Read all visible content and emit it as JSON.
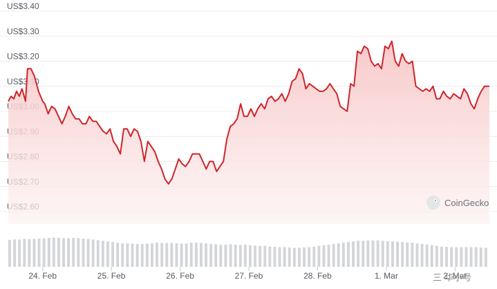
{
  "brand": {
    "name": "CoinGecko",
    "icon": "gecko-logo-icon"
  },
  "watermark": "三 华小号",
  "colors": {
    "line": "#d0232a",
    "area_top": "#f7c6c6",
    "area_bottom": "#fdf1f1",
    "volume": "#d3d5d9",
    "grid": "#ececec"
  },
  "chart_data": {
    "type": "area",
    "title": "",
    "xlabel": "",
    "ylabel": "",
    "ylim": [
      2.6,
      3.4
    ],
    "y_ticks": [
      {
        "value": 3.4,
        "label": "US$3.40"
      },
      {
        "value": 3.3,
        "label": "US$3.30"
      },
      {
        "value": 3.2,
        "label": "US$3.20"
      },
      {
        "value": 3.1,
        "label": "US$3.10"
      },
      {
        "value": 3.0,
        "label": "US$3.00"
      },
      {
        "value": 2.9,
        "label": "US$2.90"
      },
      {
        "value": 2.8,
        "label": "US$2.80"
      },
      {
        "value": 2.7,
        "label": "US$2.70"
      },
      {
        "value": 2.6,
        "label": "US$2.60"
      }
    ],
    "x_ticks": [
      {
        "day": 0.5,
        "label": "24. Feb"
      },
      {
        "day": 1.5,
        "label": "25. Feb"
      },
      {
        "day": 2.5,
        "label": "26. Feb"
      },
      {
        "day": 3.5,
        "label": "27. Feb"
      },
      {
        "day": 4.5,
        "label": "28. Feb"
      },
      {
        "day": 5.5,
        "label": "1. Mar"
      },
      {
        "day": 6.5,
        "label": "2. Mar"
      }
    ],
    "x_range": [
      0.0,
      7.0
    ],
    "grid": true,
    "series": [
      {
        "values": [
          [
            0.0,
            3.04
          ],
          [
            0.04,
            3.06
          ],
          [
            0.08,
            3.05
          ],
          [
            0.12,
            3.08
          ],
          [
            0.16,
            3.06
          ],
          [
            0.2,
            3.09
          ],
          [
            0.25,
            3.04
          ],
          [
            0.28,
            3.17
          ],
          [
            0.33,
            3.17
          ],
          [
            0.38,
            3.14
          ],
          [
            0.44,
            3.08
          ],
          [
            0.5,
            3.04
          ],
          [
            0.53,
            3.03
          ],
          [
            0.58,
            2.99
          ],
          [
            0.63,
            3.02
          ],
          [
            0.68,
            3.01
          ],
          [
            0.73,
            2.98
          ],
          [
            0.78,
            2.95
          ],
          [
            0.83,
            2.98
          ],
          [
            0.88,
            3.02
          ],
          [
            0.93,
            2.99
          ],
          [
            0.98,
            2.97
          ],
          [
            1.03,
            2.97
          ],
          [
            1.08,
            2.95
          ],
          [
            1.13,
            2.95
          ],
          [
            1.18,
            2.98
          ],
          [
            1.23,
            2.96
          ],
          [
            1.28,
            2.96
          ],
          [
            1.33,
            2.94
          ],
          [
            1.38,
            2.92
          ],
          [
            1.43,
            2.91
          ],
          [
            1.48,
            2.93
          ],
          [
            1.53,
            2.88
          ],
          [
            1.58,
            2.86
          ],
          [
            1.63,
            2.83
          ],
          [
            1.68,
            2.93
          ],
          [
            1.73,
            2.93
          ],
          [
            1.78,
            2.9
          ],
          [
            1.83,
            2.93
          ],
          [
            1.88,
            2.92
          ],
          [
            1.93,
            2.88
          ],
          [
            1.98,
            2.8
          ],
          [
            2.03,
            2.88
          ],
          [
            2.08,
            2.86
          ],
          [
            2.13,
            2.84
          ],
          [
            2.18,
            2.8
          ],
          [
            2.23,
            2.77
          ],
          [
            2.28,
            2.73
          ],
          [
            2.33,
            2.71
          ],
          [
            2.38,
            2.73
          ],
          [
            2.43,
            2.77
          ],
          [
            2.48,
            2.81
          ],
          [
            2.53,
            2.79
          ],
          [
            2.58,
            2.78
          ],
          [
            2.63,
            2.8
          ],
          [
            2.68,
            2.83
          ],
          [
            2.73,
            2.83
          ],
          [
            2.78,
            2.83
          ],
          [
            2.83,
            2.8
          ],
          [
            2.88,
            2.77
          ],
          [
            2.93,
            2.8
          ],
          [
            2.98,
            2.8
          ],
          [
            3.03,
            2.76
          ],
          [
            3.08,
            2.78
          ],
          [
            3.13,
            2.8
          ],
          [
            3.18,
            2.89
          ],
          [
            3.23,
            2.94
          ],
          [
            3.28,
            2.95
          ],
          [
            3.33,
            2.97
          ],
          [
            3.38,
            3.03
          ],
          [
            3.43,
            2.98
          ],
          [
            3.48,
            2.98
          ],
          [
            3.53,
            3.01
          ],
          [
            3.58,
            2.98
          ],
          [
            3.63,
            3.01
          ],
          [
            3.68,
            3.03
          ],
          [
            3.73,
            3.01
          ],
          [
            3.78,
            3.05
          ],
          [
            3.83,
            3.06
          ],
          [
            3.88,
            3.04
          ],
          [
            3.93,
            3.05
          ],
          [
            3.98,
            3.07
          ],
          [
            4.03,
            3.04
          ],
          [
            4.08,
            3.07
          ],
          [
            4.13,
            3.12
          ],
          [
            4.18,
            3.13
          ],
          [
            4.23,
            3.17
          ],
          [
            4.28,
            3.15
          ],
          [
            4.33,
            3.09
          ],
          [
            4.38,
            3.11
          ],
          [
            4.43,
            3.1
          ],
          [
            4.48,
            3.09
          ],
          [
            4.53,
            3.08
          ],
          [
            4.58,
            3.08
          ],
          [
            4.63,
            3.09
          ],
          [
            4.68,
            3.11
          ],
          [
            4.73,
            3.09
          ],
          [
            4.78,
            3.07
          ],
          [
            4.83,
            3.02
          ],
          [
            4.88,
            3.01
          ],
          [
            4.93,
            3.0
          ],
          [
            4.98,
            3.11
          ],
          [
            5.03,
            3.1
          ],
          [
            5.08,
            3.24
          ],
          [
            5.13,
            3.23
          ],
          [
            5.18,
            3.26
          ],
          [
            5.23,
            3.25
          ],
          [
            5.28,
            3.2
          ],
          [
            5.33,
            3.18
          ],
          [
            5.38,
            3.19
          ],
          [
            5.43,
            3.17
          ],
          [
            5.48,
            3.26
          ],
          [
            5.53,
            3.25
          ],
          [
            5.58,
            3.28
          ],
          [
            5.63,
            3.2
          ],
          [
            5.68,
            3.18
          ],
          [
            5.73,
            3.23
          ],
          [
            5.78,
            3.2
          ],
          [
            5.83,
            3.19
          ],
          [
            5.88,
            3.2
          ],
          [
            5.93,
            3.1
          ],
          [
            5.98,
            3.09
          ],
          [
            6.03,
            3.08
          ],
          [
            6.08,
            3.09
          ],
          [
            6.13,
            3.08
          ],
          [
            6.18,
            3.1
          ],
          [
            6.23,
            3.05
          ],
          [
            6.28,
            3.05
          ],
          [
            6.33,
            3.08
          ],
          [
            6.38,
            3.06
          ],
          [
            6.43,
            3.05
          ],
          [
            6.48,
            3.07
          ],
          [
            6.53,
            3.06
          ],
          [
            6.58,
            3.05
          ],
          [
            6.63,
            3.09
          ],
          [
            6.68,
            3.07
          ],
          [
            6.73,
            3.03
          ],
          [
            6.78,
            3.01
          ],
          [
            6.83,
            3.05
          ],
          [
            6.88,
            3.08
          ],
          [
            6.93,
            3.1
          ],
          [
            6.98,
            3.1
          ],
          [
            7.0,
            3.1
          ]
        ]
      }
    ],
    "volume_bars": [
      0.85,
      0.86,
      0.86,
      0.88,
      0.87,
      0.88,
      0.89,
      0.9,
      0.91,
      0.92,
      0.91,
      0.9,
      0.9,
      0.91,
      0.9,
      0.89,
      0.88,
      0.86,
      0.84,
      0.82,
      0.8,
      0.78,
      0.76,
      0.74,
      0.74,
      0.73,
      0.72,
      0.72,
      0.73,
      0.74,
      0.76,
      0.75,
      0.75,
      0.75,
      0.74,
      0.73,
      0.74,
      0.76,
      0.76,
      0.75,
      0.74,
      0.72,
      0.71,
      0.7,
      0.7,
      0.71,
      0.7,
      0.69,
      0.7,
      0.68,
      0.67,
      0.66,
      0.66,
      0.64,
      0.63,
      0.62,
      0.62,
      0.61,
      0.6,
      0.6,
      0.61,
      0.62,
      0.64,
      0.66,
      0.68,
      0.7,
      0.72,
      0.74,
      0.76,
      0.78,
      0.8,
      0.82,
      0.82,
      0.83,
      0.83,
      0.83,
      0.82,
      0.81,
      0.8,
      0.79,
      0.78,
      0.77,
      0.76,
      0.74,
      0.72,
      0.7,
      0.68,
      0.66,
      0.64,
      0.63,
      0.62,
      0.62,
      0.62,
      0.62,
      0.62,
      0.62,
      0.61,
      0.6
    ]
  }
}
